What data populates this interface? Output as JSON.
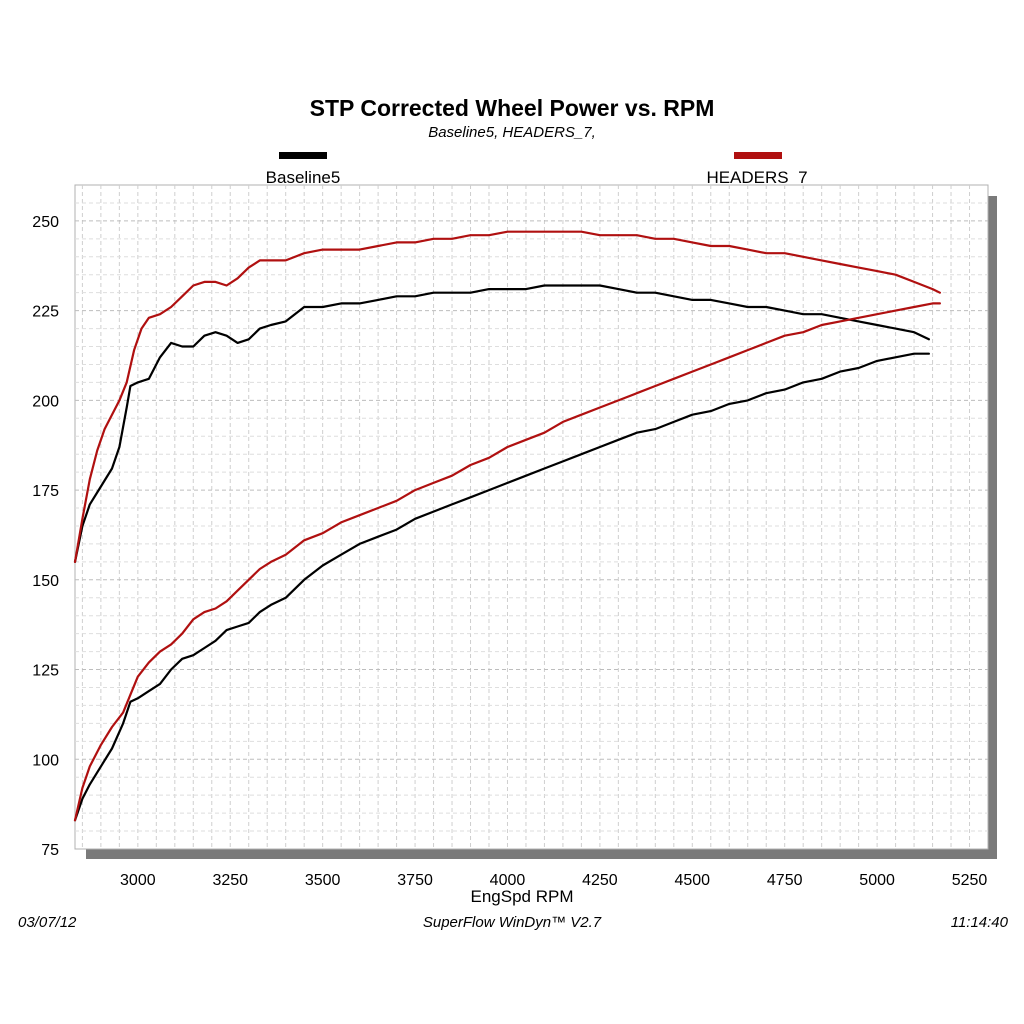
{
  "chart_data": {
    "type": "line",
    "title": "STP Corrected Wheel Power vs. RPM",
    "subtitle": "Baseline5, HEADERS_7,",
    "xlabel": "EngSpd  RPM",
    "ylabel": "",
    "xlim": [
      2830,
      5300
    ],
    "ylim": [
      75,
      260
    ],
    "x_ticks": [
      3000,
      3250,
      3500,
      3750,
      4000,
      4250,
      4500,
      4750,
      5000,
      5250
    ],
    "y_ticks": [
      75,
      100,
      125,
      150,
      175,
      200,
      225,
      250
    ],
    "grid": true,
    "legend_position": "top",
    "series": [
      {
        "name": "Baseline5",
        "color": "#000000",
        "curves": [
          {
            "quantity": "power",
            "points": [
              [
                2830,
                155
              ],
              [
                2850,
                165
              ],
              [
                2870,
                171
              ],
              [
                2900,
                176
              ],
              [
                2930,
                181
              ],
              [
                2950,
                187
              ],
              [
                2970,
                198
              ],
              [
                2980,
                204
              ],
              [
                3000,
                205
              ],
              [
                3030,
                206
              ],
              [
                3060,
                212
              ],
              [
                3090,
                216
              ],
              [
                3120,
                215
              ],
              [
                3150,
                215
              ],
              [
                3180,
                218
              ],
              [
                3210,
                219
              ],
              [
                3240,
                218
              ],
              [
                3270,
                216
              ],
              [
                3300,
                217
              ],
              [
                3330,
                220
              ],
              [
                3360,
                221
              ],
              [
                3400,
                222
              ],
              [
                3450,
                226
              ],
              [
                3500,
                226
              ],
              [
                3550,
                227
              ],
              [
                3600,
                227
              ],
              [
                3650,
                228
              ],
              [
                3700,
                229
              ],
              [
                3750,
                229
              ],
              [
                3800,
                230
              ],
              [
                3850,
                230
              ],
              [
                3900,
                230
              ],
              [
                3950,
                231
              ],
              [
                4000,
                231
              ],
              [
                4050,
                231
              ],
              [
                4100,
                232
              ],
              [
                4150,
                232
              ],
              [
                4200,
                232
              ],
              [
                4250,
                232
              ],
              [
                4300,
                231
              ],
              [
                4350,
                230
              ],
              [
                4400,
                230
              ],
              [
                4450,
                229
              ],
              [
                4500,
                228
              ],
              [
                4550,
                228
              ],
              [
                4600,
                227
              ],
              [
                4650,
                226
              ],
              [
                4700,
                226
              ],
              [
                4750,
                225
              ],
              [
                4800,
                224
              ],
              [
                4850,
                224
              ],
              [
                4900,
                223
              ],
              [
                4950,
                222
              ],
              [
                5000,
                221
              ],
              [
                5050,
                220
              ],
              [
                5100,
                219
              ],
              [
                5140,
                217
              ]
            ]
          },
          {
            "quantity": "torque",
            "points": [
              [
                2830,
                83
              ],
              [
                2850,
                89
              ],
              [
                2870,
                93
              ],
              [
                2900,
                98
              ],
              [
                2930,
                103
              ],
              [
                2960,
                110
              ],
              [
                2980,
                116
              ],
              [
                3000,
                117
              ],
              [
                3030,
                119
              ],
              [
                3060,
                121
              ],
              [
                3090,
                125
              ],
              [
                3120,
                128
              ],
              [
                3150,
                129
              ],
              [
                3180,
                131
              ],
              [
                3210,
                133
              ],
              [
                3240,
                136
              ],
              [
                3270,
                137
              ],
              [
                3300,
                138
              ],
              [
                3330,
                141
              ],
              [
                3360,
                143
              ],
              [
                3400,
                145
              ],
              [
                3450,
                150
              ],
              [
                3500,
                154
              ],
              [
                3550,
                157
              ],
              [
                3600,
                160
              ],
              [
                3650,
                162
              ],
              [
                3700,
                164
              ],
              [
                3750,
                167
              ],
              [
                3800,
                169
              ],
              [
                3850,
                171
              ],
              [
                3900,
                173
              ],
              [
                3950,
                175
              ],
              [
                4000,
                177
              ],
              [
                4050,
                179
              ],
              [
                4100,
                181
              ],
              [
                4150,
                183
              ],
              [
                4200,
                185
              ],
              [
                4250,
                187
              ],
              [
                4300,
                189
              ],
              [
                4350,
                191
              ],
              [
                4400,
                192
              ],
              [
                4450,
                194
              ],
              [
                4500,
                196
              ],
              [
                4550,
                197
              ],
              [
                4600,
                199
              ],
              [
                4650,
                200
              ],
              [
                4700,
                202
              ],
              [
                4750,
                203
              ],
              [
                4800,
                205
              ],
              [
                4850,
                206
              ],
              [
                4900,
                208
              ],
              [
                4950,
                209
              ],
              [
                5000,
                211
              ],
              [
                5050,
                212
              ],
              [
                5100,
                213
              ],
              [
                5140,
                213
              ]
            ]
          }
        ]
      },
      {
        "name": "HEADERS_7",
        "color": "#b01010",
        "curves": [
          {
            "quantity": "power",
            "points": [
              [
                2830,
                155
              ],
              [
                2850,
                167
              ],
              [
                2870,
                178
              ],
              [
                2890,
                186
              ],
              [
                2910,
                192
              ],
              [
                2930,
                196
              ],
              [
                2950,
                200
              ],
              [
                2970,
                205
              ],
              [
                2990,
                214
              ],
              [
                3010,
                220
              ],
              [
                3030,
                223
              ],
              [
                3060,
                224
              ],
              [
                3090,
                226
              ],
              [
                3120,
                229
              ],
              [
                3150,
                232
              ],
              [
                3180,
                233
              ],
              [
                3210,
                233
              ],
              [
                3240,
                232
              ],
              [
                3270,
                234
              ],
              [
                3300,
                237
              ],
              [
                3330,
                239
              ],
              [
                3360,
                239
              ],
              [
                3400,
                239
              ],
              [
                3450,
                241
              ],
              [
                3500,
                242
              ],
              [
                3550,
                242
              ],
              [
                3600,
                242
              ],
              [
                3650,
                243
              ],
              [
                3700,
                244
              ],
              [
                3750,
                244
              ],
              [
                3800,
                245
              ],
              [
                3850,
                245
              ],
              [
                3900,
                246
              ],
              [
                3950,
                246
              ],
              [
                4000,
                247
              ],
              [
                4050,
                247
              ],
              [
                4100,
                247
              ],
              [
                4150,
                247
              ],
              [
                4200,
                247
              ],
              [
                4250,
                246
              ],
              [
                4300,
                246
              ],
              [
                4350,
                246
              ],
              [
                4400,
                245
              ],
              [
                4450,
                245
              ],
              [
                4500,
                244
              ],
              [
                4550,
                243
              ],
              [
                4600,
                243
              ],
              [
                4650,
                242
              ],
              [
                4700,
                241
              ],
              [
                4750,
                241
              ],
              [
                4800,
                240
              ],
              [
                4850,
                239
              ],
              [
                4900,
                238
              ],
              [
                4950,
                237
              ],
              [
                5000,
                236
              ],
              [
                5050,
                235
              ],
              [
                5100,
                233
              ],
              [
                5150,
                231
              ],
              [
                5170,
                230
              ]
            ]
          },
          {
            "quantity": "torque",
            "points": [
              [
                2830,
                83
              ],
              [
                2850,
                92
              ],
              [
                2870,
                98
              ],
              [
                2900,
                104
              ],
              [
                2930,
                109
              ],
              [
                2960,
                113
              ],
              [
                2980,
                118
              ],
              [
                3000,
                123
              ],
              [
                3030,
                127
              ],
              [
                3060,
                130
              ],
              [
                3090,
                132
              ],
              [
                3120,
                135
              ],
              [
                3150,
                139
              ],
              [
                3180,
                141
              ],
              [
                3210,
                142
              ],
              [
                3240,
                144
              ],
              [
                3270,
                147
              ],
              [
                3300,
                150
              ],
              [
                3330,
                153
              ],
              [
                3360,
                155
              ],
              [
                3400,
                157
              ],
              [
                3450,
                161
              ],
              [
                3500,
                163
              ],
              [
                3550,
                166
              ],
              [
                3600,
                168
              ],
              [
                3650,
                170
              ],
              [
                3700,
                172
              ],
              [
                3750,
                175
              ],
              [
                3800,
                177
              ],
              [
                3850,
                179
              ],
              [
                3900,
                182
              ],
              [
                3950,
                184
              ],
              [
                4000,
                187
              ],
              [
                4050,
                189
              ],
              [
                4100,
                191
              ],
              [
                4150,
                194
              ],
              [
                4200,
                196
              ],
              [
                4250,
                198
              ],
              [
                4300,
                200
              ],
              [
                4350,
                202
              ],
              [
                4400,
                204
              ],
              [
                4450,
                206
              ],
              [
                4500,
                208
              ],
              [
                4550,
                210
              ],
              [
                4600,
                212
              ],
              [
                4650,
                214
              ],
              [
                4700,
                216
              ],
              [
                4750,
                218
              ],
              [
                4800,
                219
              ],
              [
                4850,
                221
              ],
              [
                4900,
                222
              ],
              [
                4950,
                223
              ],
              [
                5000,
                224
              ],
              [
                5050,
                225
              ],
              [
                5100,
                226
              ],
              [
                5150,
                227
              ],
              [
                5170,
                227
              ]
            ]
          }
        ]
      }
    ]
  },
  "footer": {
    "date": "03/07/12",
    "software": "SuperFlow WinDyn™ V2.7",
    "time": "11:14:40"
  }
}
